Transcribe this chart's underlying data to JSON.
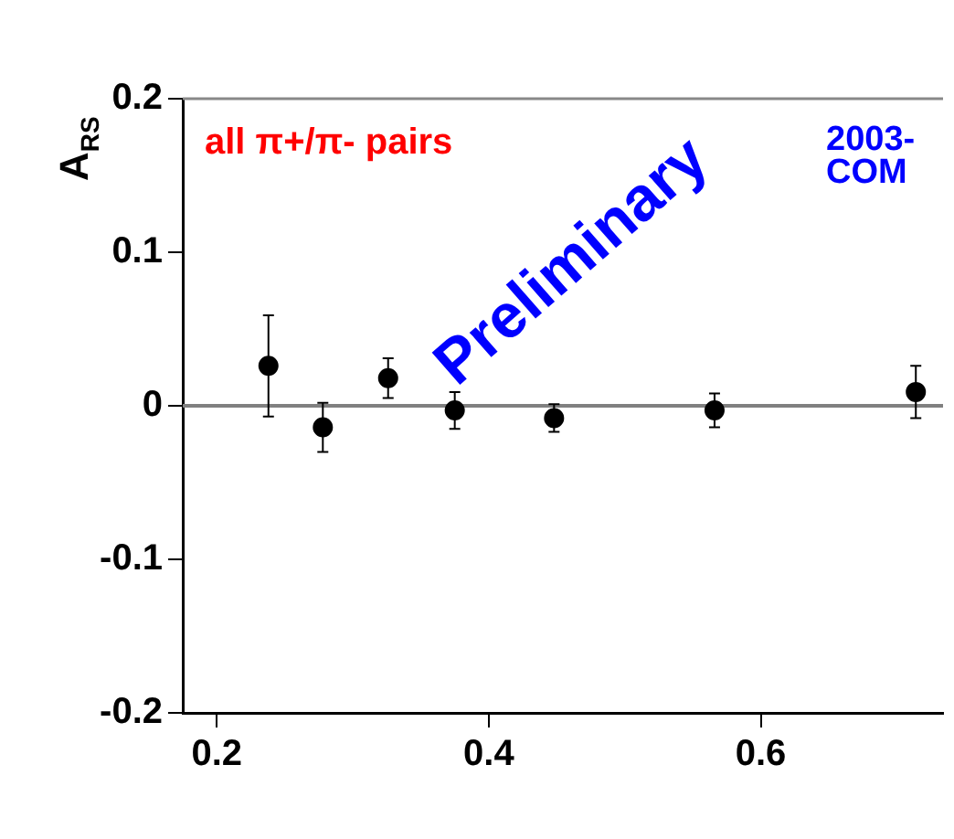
{
  "chart_data": {
    "type": "scatter",
    "ylabel": "A$_{RS}$",
    "annotations": [
      "all π+/π- pairs",
      "Preliminary",
      "2003-",
      "COM"
    ],
    "x": [
      0.238,
      0.278,
      0.326,
      0.375,
      0.448,
      0.566,
      0.714
    ],
    "series": [
      {
        "color": "#000000",
        "values": [
          0.026,
          -0.014,
          0.018,
          -0.003,
          -0.008,
          -0.003,
          0.009
        ],
        "errors": [
          0.033,
          0.016,
          0.013,
          0.012,
          0.009,
          0.011,
          0.017
        ]
      }
    ],
    "xlim": [
      0.175,
      0.734
    ],
    "xticks": [
      0.2,
      0.4,
      0.6
    ],
    "ylim": [
      -0.2,
      0.2
    ],
    "yticks": [
      -0.2,
      -0.1,
      0,
      0.1,
      0.2
    ],
    "ref_lines": [
      {
        "axis": "y",
        "value": 0,
        "color": "#808080"
      }
    ],
    "grid": false,
    "legend": false,
    "marker": "circle"
  }
}
